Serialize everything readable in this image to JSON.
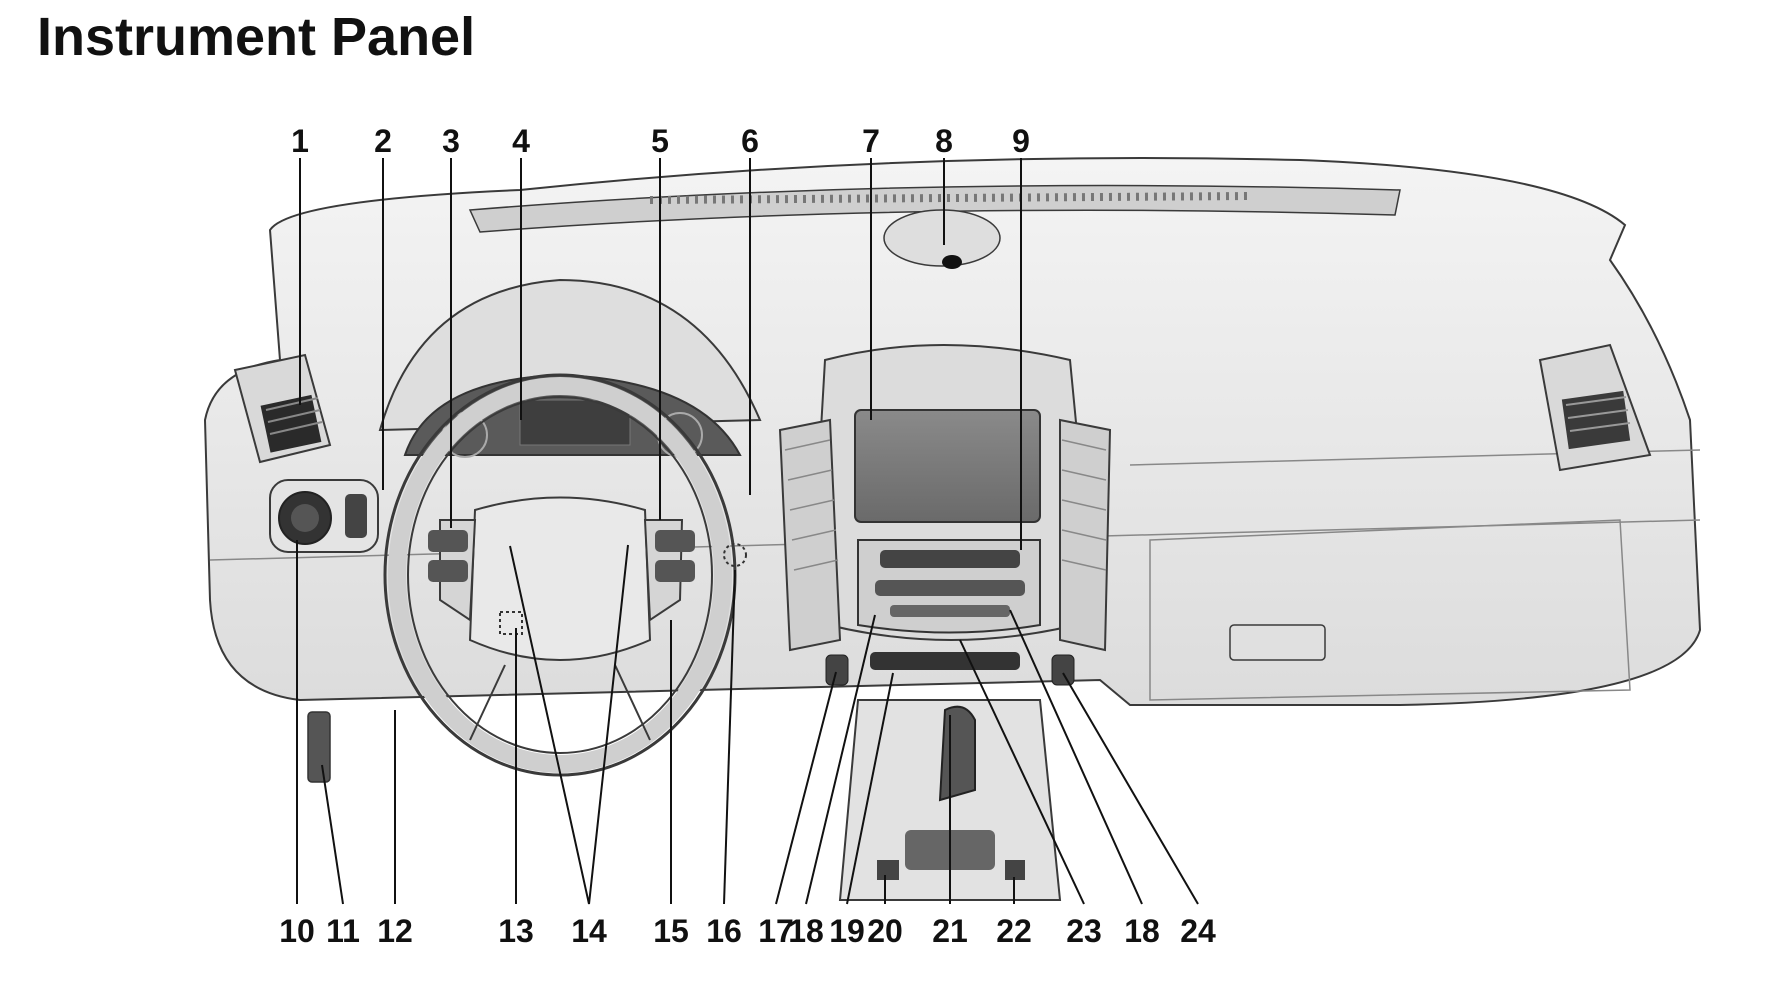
{
  "title": "Instrument Panel",
  "callouts_top": [
    "1",
    "2",
    "3",
    "4",
    "5",
    "6",
    "7",
    "8",
    "9"
  ],
  "callouts_bottom": [
    "10",
    "11",
    "12",
    "13",
    "14",
    "15",
    "16",
    "17",
    "18",
    "19",
    "20",
    "21",
    "22",
    "23",
    "18",
    "24"
  ],
  "colors": {
    "outline": "#3a3a3a",
    "panel": "#ececec",
    "shade": "#d4d4d4",
    "dark": "#555555",
    "text": "#111111"
  }
}
